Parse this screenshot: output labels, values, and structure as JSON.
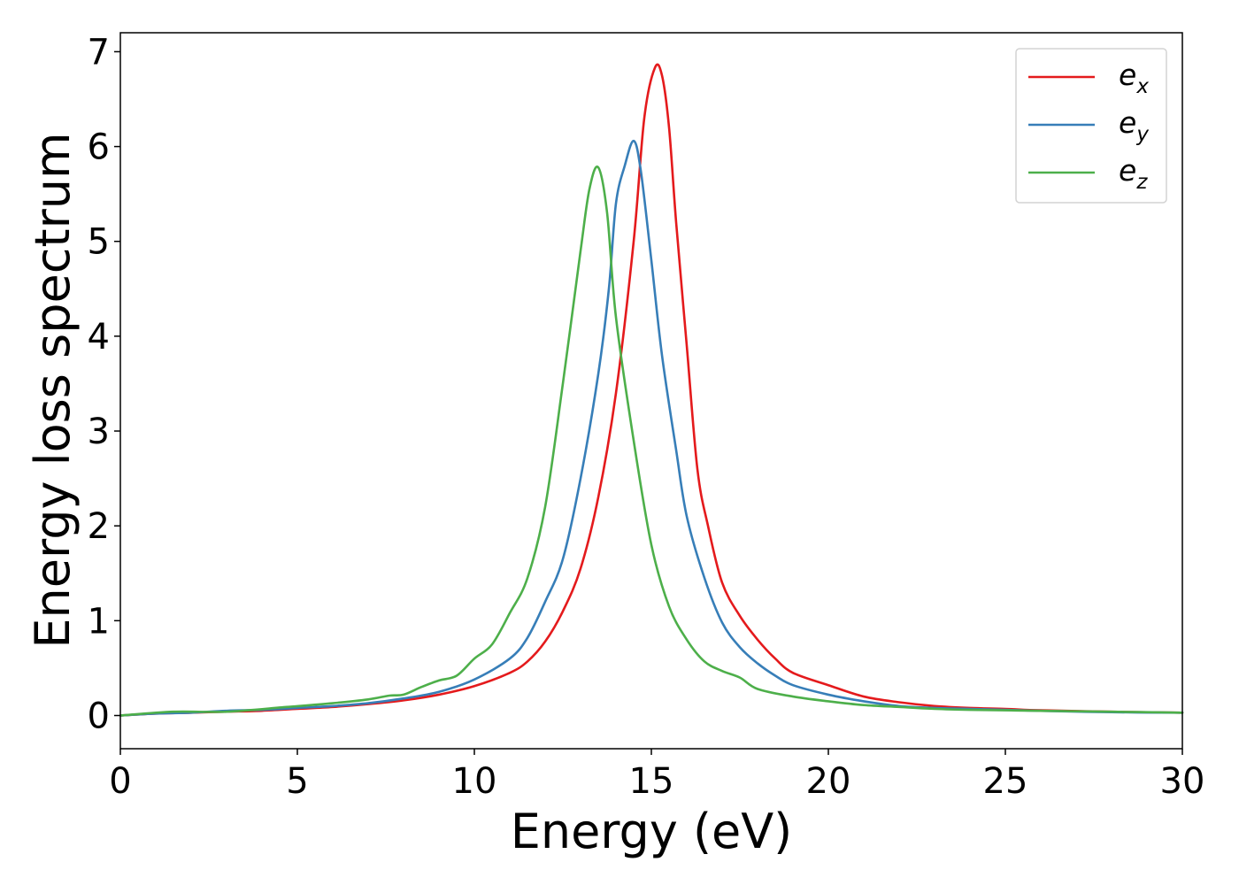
{
  "chart_data": {
    "type": "line",
    "title": "",
    "xlabel": "Energy (eV)",
    "ylabel": "Energy loss spectrum",
    "xlim": [
      0,
      30
    ],
    "ylim": [
      -0.35,
      7.2
    ],
    "xticks": [
      0,
      5,
      10,
      15,
      20,
      25,
      30
    ],
    "yticks": [
      0,
      1,
      2,
      3,
      4,
      5,
      6,
      7
    ],
    "grid": false,
    "legend_position": "top-right",
    "series": [
      {
        "name": "e_x",
        "label_base": "e",
        "label_sub": "x",
        "color": "#e41a1c",
        "points": [
          [
            0,
            0.0
          ],
          [
            1,
            0.02
          ],
          [
            2,
            0.03
          ],
          [
            3,
            0.04
          ],
          [
            4,
            0.05
          ],
          [
            5,
            0.07
          ],
          [
            6,
            0.09
          ],
          [
            7,
            0.12
          ],
          [
            8,
            0.16
          ],
          [
            9,
            0.22
          ],
          [
            10,
            0.31
          ],
          [
            11,
            0.45
          ],
          [
            11.5,
            0.57
          ],
          [
            12,
            0.78
          ],
          [
            12.5,
            1.1
          ],
          [
            13,
            1.55
          ],
          [
            13.5,
            2.3
          ],
          [
            14,
            3.4
          ],
          [
            14.5,
            5.0
          ],
          [
            14.8,
            6.3
          ],
          [
            15.1,
            6.83
          ],
          [
            15.3,
            6.75
          ],
          [
            15.5,
            6.2
          ],
          [
            15.7,
            5.2
          ],
          [
            16,
            3.9
          ],
          [
            16.3,
            2.6
          ],
          [
            16.6,
            2.0
          ],
          [
            17,
            1.4
          ],
          [
            17.5,
            1.05
          ],
          [
            18,
            0.8
          ],
          [
            18.5,
            0.6
          ],
          [
            19,
            0.45
          ],
          [
            20,
            0.32
          ],
          [
            21,
            0.2
          ],
          [
            22,
            0.14
          ],
          [
            23,
            0.1
          ],
          [
            24,
            0.08
          ],
          [
            25,
            0.07
          ],
          [
            26,
            0.055
          ],
          [
            28,
            0.04
          ],
          [
            30,
            0.03
          ]
        ]
      },
      {
        "name": "e_y",
        "label_base": "e",
        "label_sub": "y",
        "color": "#377eb8",
        "points": [
          [
            0,
            0.0
          ],
          [
            1,
            0.02
          ],
          [
            2,
            0.03
          ],
          [
            3,
            0.05
          ],
          [
            4,
            0.06
          ],
          [
            5,
            0.08
          ],
          [
            6,
            0.1
          ],
          [
            7,
            0.13
          ],
          [
            8,
            0.18
          ],
          [
            9,
            0.25
          ],
          [
            10,
            0.38
          ],
          [
            11,
            0.6
          ],
          [
            11.5,
            0.82
          ],
          [
            12,
            1.2
          ],
          [
            12.5,
            1.65
          ],
          [
            13,
            2.5
          ],
          [
            13.5,
            3.6
          ],
          [
            13.8,
            4.5
          ],
          [
            14,
            5.4
          ],
          [
            14.25,
            5.8
          ],
          [
            14.5,
            6.06
          ],
          [
            14.7,
            5.75
          ],
          [
            15,
            4.8
          ],
          [
            15.3,
            3.8
          ],
          [
            15.7,
            2.8
          ],
          [
            16,
            2.1
          ],
          [
            16.5,
            1.45
          ],
          [
            17,
            0.98
          ],
          [
            17.5,
            0.72
          ],
          [
            18,
            0.55
          ],
          [
            18.5,
            0.42
          ],
          [
            19,
            0.32
          ],
          [
            20,
            0.22
          ],
          [
            21,
            0.15
          ],
          [
            22,
            0.1
          ],
          [
            23,
            0.08
          ],
          [
            24,
            0.07
          ],
          [
            25,
            0.06
          ],
          [
            26,
            0.05
          ],
          [
            28,
            0.035
          ],
          [
            30,
            0.03
          ]
        ]
      },
      {
        "name": "e_z",
        "label_base": "e",
        "label_sub": "z",
        "color": "#4daf4a",
        "points": [
          [
            0,
            0.0
          ],
          [
            1.5,
            0.04
          ],
          [
            3,
            0.04
          ],
          [
            4.7,
            0.09
          ],
          [
            6,
            0.13
          ],
          [
            7,
            0.17
          ],
          [
            7.6,
            0.21
          ],
          [
            8,
            0.22
          ],
          [
            8.5,
            0.3
          ],
          [
            9,
            0.37
          ],
          [
            9.5,
            0.42
          ],
          [
            10,
            0.6
          ],
          [
            10.5,
            0.75
          ],
          [
            11,
            1.08
          ],
          [
            11.5,
            1.45
          ],
          [
            12,
            2.2
          ],
          [
            12.5,
            3.5
          ],
          [
            13,
            4.9
          ],
          [
            13.25,
            5.55
          ],
          [
            13.5,
            5.78
          ],
          [
            13.75,
            5.3
          ],
          [
            14,
            4.2
          ],
          [
            14.5,
            2.9
          ],
          [
            15,
            1.8
          ],
          [
            15.5,
            1.15
          ],
          [
            16,
            0.8
          ],
          [
            16.5,
            0.57
          ],
          [
            17,
            0.47
          ],
          [
            17.5,
            0.4
          ],
          [
            18,
            0.28
          ],
          [
            19,
            0.2
          ],
          [
            20,
            0.15
          ],
          [
            21,
            0.11
          ],
          [
            22,
            0.09
          ],
          [
            23,
            0.07
          ],
          [
            24,
            0.06
          ],
          [
            26,
            0.05
          ],
          [
            28,
            0.04
          ],
          [
            30,
            0.03
          ]
        ]
      }
    ]
  }
}
